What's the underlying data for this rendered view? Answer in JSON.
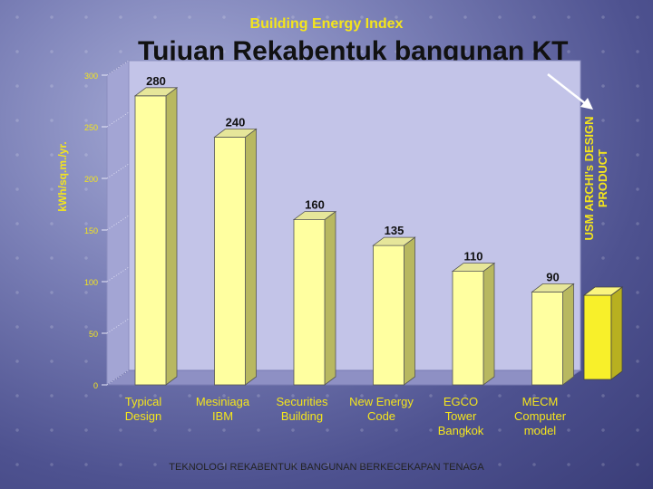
{
  "chart_data": {
    "type": "bar",
    "title": "Building Energy Index",
    "ylabel": "kWh/sq.m./yr.",
    "ylim": [
      0,
      300
    ],
    "yticks": [
      0,
      50,
      100,
      150,
      200,
      250,
      300
    ],
    "categories": [
      [
        "Typical",
        "Design"
      ],
      [
        "Mesiniaga",
        "IBM"
      ],
      [
        "Securities",
        "Building"
      ],
      [
        "New Energy",
        "Code"
      ],
      [
        "EGCO",
        "Tower",
        "Bangkok"
      ],
      [
        "MECM",
        "Computer",
        "model"
      ]
    ],
    "values": [
      280,
      240,
      160,
      135,
      110,
      90
    ],
    "data_labels": [
      "280",
      "240",
      "160",
      "135",
      "110",
      "90"
    ],
    "grid": false,
    "bar_color": "#ffffa0",
    "highlight": {
      "label_lines": [
        "USM ARCHI's DESIGN",
        "PRODUCT"
      ],
      "color": "#f8f02a"
    }
  },
  "slide_title": "Tujuan Rekabentuk bangunan KT",
  "footer": "TEKNOLOGI REKABENTUK BANGUNAN BERKECEKAPAN TENAGA",
  "colors": {
    "accent": "#f4e51c",
    "background": "#6e73b0",
    "chart_wall": "#c3c4e8"
  }
}
